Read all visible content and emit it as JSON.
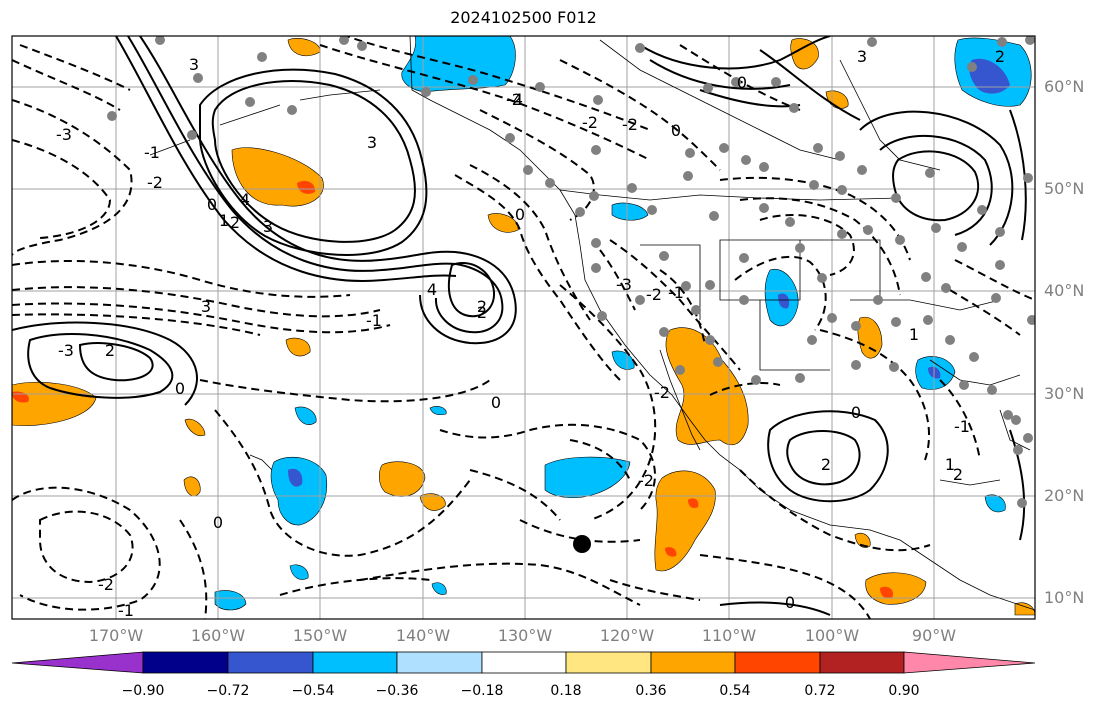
{
  "title": "2024102500 F012",
  "lat_labels": [
    "60°N",
    "50°N",
    "40°N",
    "30°N",
    "20°N",
    "10°N"
  ],
  "lon_labels": [
    "170°W",
    "160°W",
    "150°W",
    "140°W",
    "130°W",
    "120°W",
    "110°W",
    "100°W",
    "90°W"
  ],
  "colorbar": {
    "ticks": [
      "−0.90",
      "−0.72",
      "−0.54",
      "−0.36",
      "−0.18",
      "0.18",
      "0.36",
      "0.54",
      "0.72",
      "0.90"
    ],
    "colors": [
      "#9932cc",
      "#00008b",
      "#3656d0",
      "#00bfff",
      "#b0e0ff",
      "#ffffff",
      "#ffe680",
      "#ffa500",
      "#ff4500",
      "#b22222",
      "#ff88aa"
    ]
  },
  "contour_labels": [
    "3",
    "4",
    "3",
    "2",
    "1",
    "0",
    "-1",
    "-2",
    "-3",
    "4",
    "3",
    "2",
    "0",
    "-1",
    "-2",
    "3",
    "2",
    "-3",
    "0",
    "-1",
    "-2",
    "4",
    "2",
    "0",
    "-3",
    "-2",
    "2",
    "3",
    "0",
    "0",
    "-2",
    "1",
    "2",
    "-1",
    "-2",
    "0",
    "-2",
    "-1",
    "0",
    "-2",
    "0",
    "1",
    "2"
  ],
  "colors": {
    "frame": "#000000",
    "grid": "#a0a0a0",
    "axis_label": "#808080",
    "station": "#808080"
  }
}
